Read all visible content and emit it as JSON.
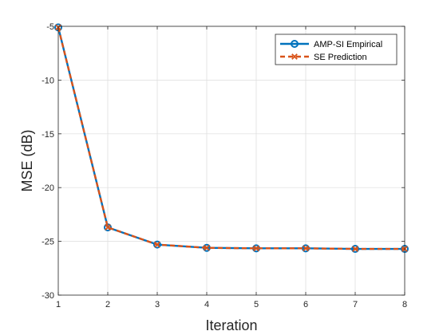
{
  "chart_data": {
    "type": "line",
    "xlabel": "Iteration",
    "ylabel": "MSE (dB)",
    "x": [
      1,
      2,
      3,
      4,
      5,
      6,
      7,
      8
    ],
    "xlim": [
      1,
      8
    ],
    "ylim": [
      -30,
      -5
    ],
    "xticks": [
      1,
      2,
      3,
      4,
      5,
      6,
      7,
      8
    ],
    "yticks": [
      -30,
      -25,
      -20,
      -15,
      -10,
      -5
    ],
    "grid": true,
    "legend_position": "top-right",
    "series": [
      {
        "name": "AMP-SI Empirical",
        "values": [
          -5.1,
          -23.7,
          -25.3,
          -25.6,
          -25.65,
          -25.65,
          -25.7,
          -25.7
        ],
        "color": "#0072BD",
        "style": "solid",
        "marker": "circle"
      },
      {
        "name": "SE Prediction",
        "values": [
          -5.1,
          -23.7,
          -25.3,
          -25.6,
          -25.65,
          -25.65,
          -25.7,
          -25.7
        ],
        "color": "#D95319",
        "style": "dashed",
        "marker": "x"
      }
    ]
  }
}
